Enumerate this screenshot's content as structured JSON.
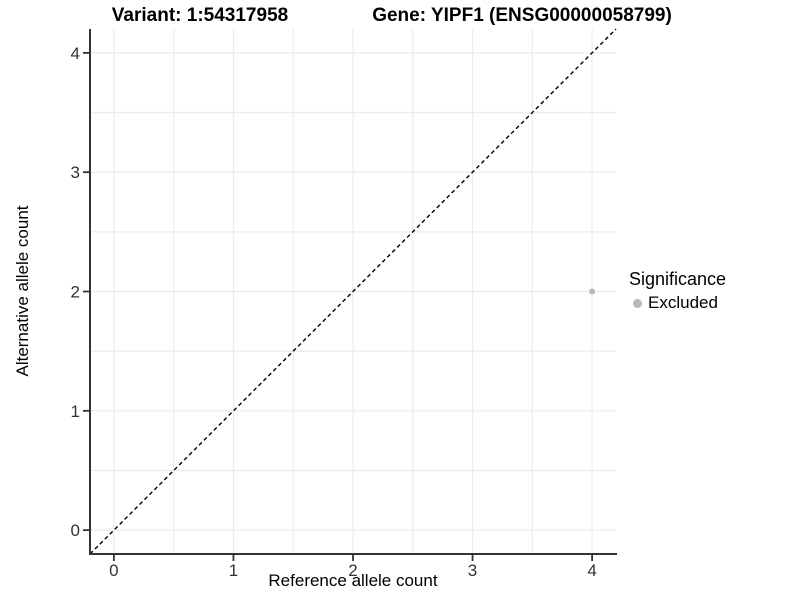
{
  "header": {
    "variant_title": "Variant: 1:54317958",
    "gene_title": "Gene: YIPF1 (ENSG00000058799)"
  },
  "legend": {
    "title": "Significance",
    "items": [
      {
        "label": "Excluded",
        "color": "#b8b8b8"
      }
    ]
  },
  "chart_data": {
    "type": "scatter",
    "title_left": "Variant: 1:54317958",
    "title_right": "Gene: YIPF1 (ENSG00000058799)",
    "xlabel": "Reference allele count",
    "ylabel": "Alternative allele count",
    "xlim": [
      -0.2,
      4.2
    ],
    "ylim": [
      -0.2,
      4.2
    ],
    "xticks": [
      0,
      1,
      2,
      3,
      4
    ],
    "yticks": [
      0,
      1,
      2,
      3,
      4
    ],
    "grid_step": 0.5,
    "grid": true,
    "legend_position": "right",
    "reference_line": {
      "style": "dashed",
      "from": [
        -0.2,
        -0.2
      ],
      "to": [
        4.2,
        4.2
      ],
      "color": "#000000"
    },
    "series": [
      {
        "name": "Excluded",
        "color": "#b8b8b8",
        "points": [
          {
            "x": 4,
            "y": 2
          }
        ]
      }
    ],
    "colors": {
      "grid": "#ececec",
      "axis_line": "#333333",
      "tick_mark": "#333333",
      "tick_text": "#333333"
    }
  }
}
